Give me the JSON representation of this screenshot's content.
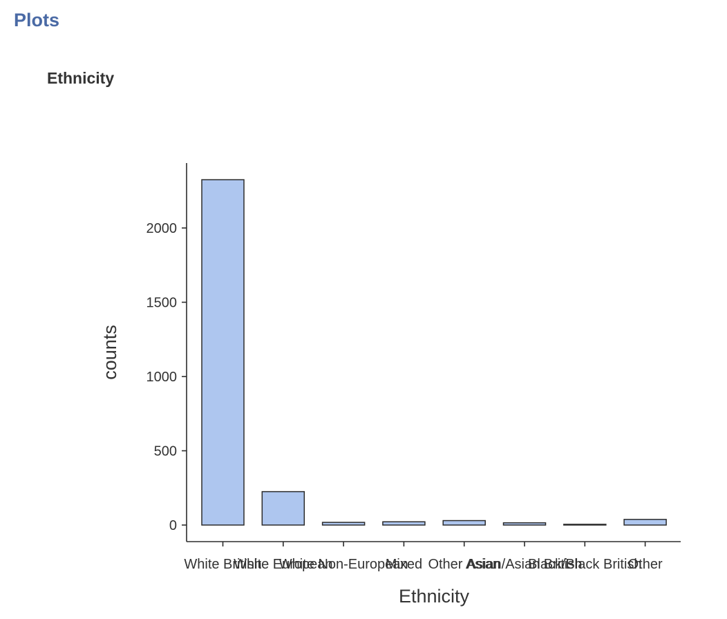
{
  "panel": {
    "title": "Plots"
  },
  "chart_data": {
    "type": "bar",
    "title": "Ethnicity",
    "xlabel": "Ethnicity",
    "ylabel": "counts",
    "categories": [
      "White British",
      "White European",
      "White Non-European",
      "Mixed",
      "Other Asian",
      "Asian/Asian British",
      "Black/Black British",
      "Other"
    ],
    "values": [
      2325,
      225,
      18,
      22,
      30,
      15,
      5,
      38
    ],
    "ylim": [
      -40,
      2420
    ],
    "yticks": [
      0,
      500,
      1000,
      1500,
      2000
    ],
    "grid": false,
    "legend": "none",
    "bar_color": "#aec6ef",
    "bar_outline": "#2b2b2b"
  }
}
